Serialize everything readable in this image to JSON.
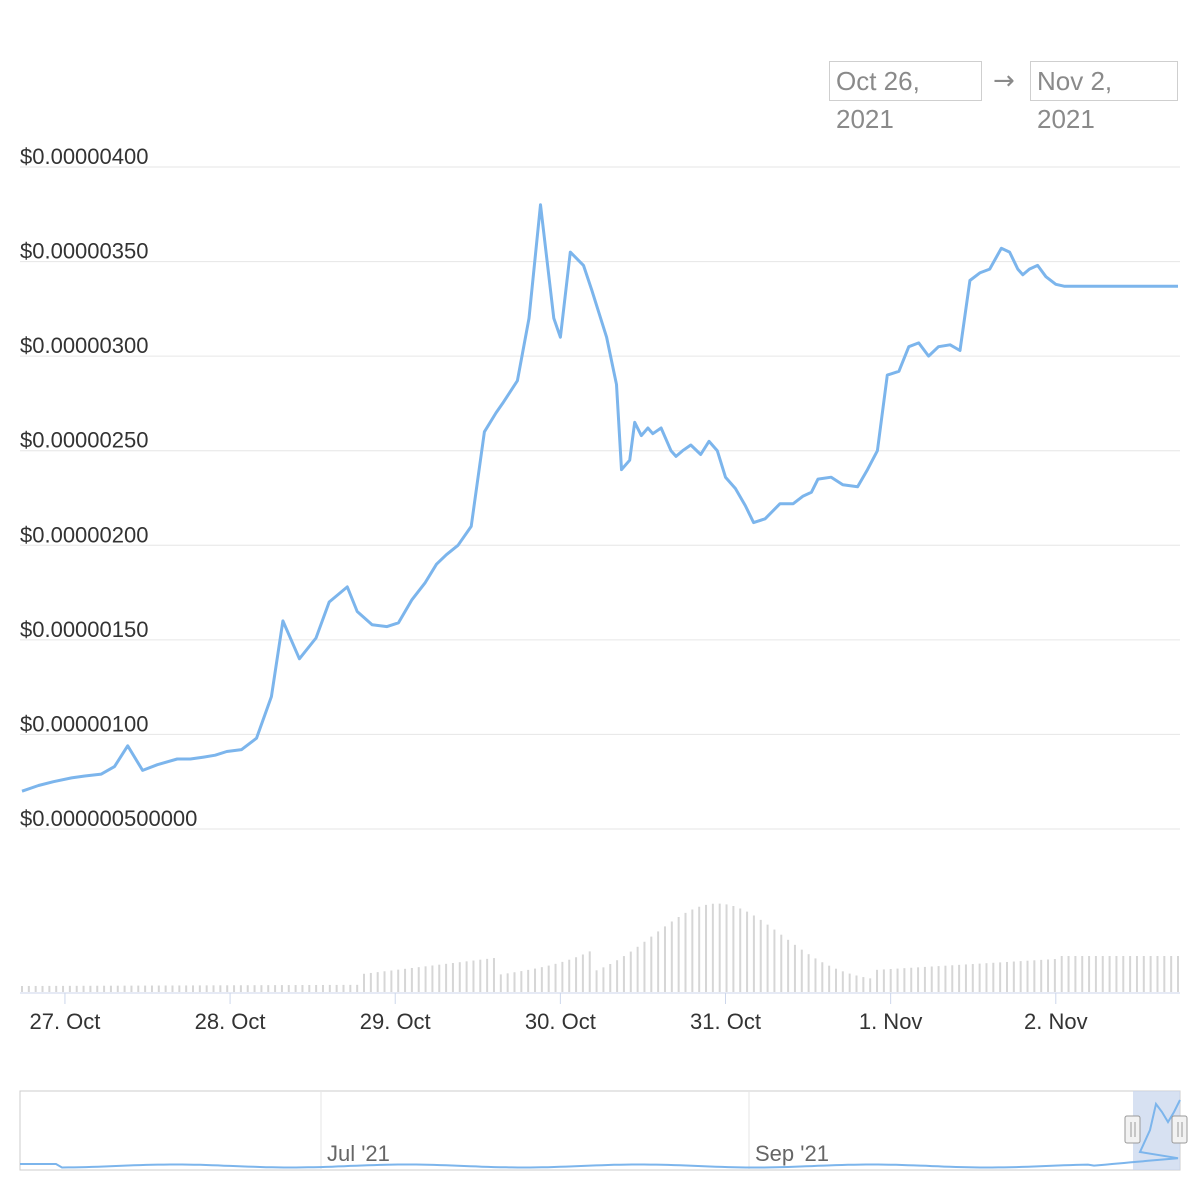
{
  "range_selector": {
    "from": "Oct 26, 2021",
    "arrow": "→",
    "to": "Nov 2, 2021"
  },
  "colors": {
    "line": "#7cb5ec",
    "grid": "#e6e6e6",
    "volume_bar": "#d6d6d6",
    "navigator_mask": "#c9d7ee"
  },
  "chart_data": {
    "type": "line",
    "x_unit": "days since 00:00 on 26 Oct 2021",
    "ylim": [
      5e-07,
      4e-06
    ],
    "y_ticks": [
      {
        "value": 4e-06,
        "label": "$0.00000400"
      },
      {
        "value": 3.5e-06,
        "label": "$0.00000350"
      },
      {
        "value": 3e-06,
        "label": "$0.00000300"
      },
      {
        "value": 2.5e-06,
        "label": "$0.00000250"
      },
      {
        "value": 2e-06,
        "label": "$0.00000200"
      },
      {
        "value": 1.5e-06,
        "label": "$0.00000150"
      },
      {
        "value": 1e-06,
        "label": "$0.00000100"
      },
      {
        "value": 5e-07,
        "label": "$0.000000500000"
      }
    ],
    "x_ticks": [
      {
        "x": 1,
        "label": "27. Oct"
      },
      {
        "x": 2,
        "label": "28. Oct"
      },
      {
        "x": 3,
        "label": "29. Oct"
      },
      {
        "x": 4,
        "label": "30. Oct"
      },
      {
        "x": 5,
        "label": "31. Oct"
      },
      {
        "x": 6,
        "label": "1. Nov"
      },
      {
        "x": 7,
        "label": "2. Nov"
      }
    ],
    "xlim": [
      0.74,
      7.74
    ],
    "series": [
      {
        "x": [
          0.74,
          0.84,
          0.93,
          1.04,
          1.12,
          1.22,
          1.3,
          1.38,
          1.47,
          1.56,
          1.68,
          1.76,
          1.84,
          1.91,
          1.98,
          2.07,
          2.16,
          2.25,
          2.32,
          2.42,
          2.52,
          2.6,
          2.71,
          2.77,
          2.86,
          2.95,
          3.02,
          3.1,
          3.18,
          3.25,
          3.31,
          3.38,
          3.46,
          3.54,
          3.61,
          3.65,
          3.74,
          3.81,
          3.88,
          3.96,
          4.0,
          4.06,
          4.14,
          4.19,
          4.28,
          4.34,
          4.37,
          4.42,
          4.45,
          4.49,
          4.53,
          4.56,
          4.61,
          4.67,
          4.7,
          4.74,
          4.79,
          4.85,
          4.9,
          4.95,
          5.0,
          5.06,
          5.12,
          5.17,
          5.24,
          5.33,
          5.41,
          5.47,
          5.52,
          5.56,
          5.64,
          5.71,
          5.8,
          5.86,
          5.92,
          5.98,
          6.05,
          6.11,
          6.17,
          6.23,
          6.29,
          6.36,
          6.42,
          6.48,
          6.54,
          6.6,
          6.67,
          6.72,
          6.77,
          6.8,
          6.84,
          6.89,
          6.94,
          7.0,
          7.05,
          7.1,
          7.16,
          7.22,
          7.28,
          7.3,
          7.34,
          7.37,
          7.41,
          7.44,
          7.48,
          7.52,
          7.56,
          7.6,
          7.64,
          7.7,
          7.74
        ],
        "y": [
          7e-07,
          7.3e-07,
          7.5e-07,
          7.7e-07,
          7.8e-07,
          7.9e-07,
          8.3e-07,
          9.4e-07,
          8.1e-07,
          8.4e-07,
          8.7e-07,
          8.7e-07,
          8.8e-07,
          8.9e-07,
          9.1e-07,
          9.2e-07,
          9.8e-07,
          1.2e-06,
          1.6e-06,
          1.4e-06,
          1.51e-06,
          1.7e-06,
          1.78e-06,
          1.65e-06,
          1.58e-06,
          1.57e-06,
          1.59e-06,
          1.71e-06,
          1.8e-06,
          1.9e-06,
          1.95e-06,
          2e-06,
          2.1e-06,
          2.6e-06,
          2.7e-06,
          2.75e-06,
          2.87e-06,
          3.2e-06,
          3.8e-06,
          3.2e-06,
          3.1e-06,
          3.55e-06,
          3.48e-06,
          3.35e-06,
          3.1e-06,
          2.85e-06,
          2.4e-06,
          2.45e-06,
          2.65e-06,
          2.58e-06,
          2.62e-06,
          2.59e-06,
          2.62e-06,
          2.5e-06,
          2.47e-06,
          2.5e-06,
          2.53e-06,
          2.48e-06,
          2.55e-06,
          2.5e-06,
          2.36e-06,
          2.3e-06,
          2.21e-06,
          2.12e-06,
          2.14e-06,
          2.22e-06,
          2.22e-06,
          2.26e-06,
          2.28e-06,
          2.35e-06,
          2.36e-06,
          2.32e-06,
          2.31e-06,
          2.4e-06,
          2.5e-06,
          2.9e-06,
          2.92e-06,
          3.05e-06,
          3.07e-06,
          3e-06,
          3.05e-06,
          3.06e-06,
          3.03e-06,
          3.4e-06,
          3.44e-06,
          3.46e-06,
          3.57e-06,
          3.55e-06,
          3.46e-06,
          3.43e-06,
          3.46e-06,
          3.48e-06,
          3.42e-06,
          3.38e-06,
          3.37e-06,
          3.37e-06,
          3.37e-06,
          3.37e-06,
          3.37e-06,
          3.37e-06,
          3.37e-06,
          3.37e-06,
          3.37e-06,
          3.37e-06,
          3.37e-06,
          3.37e-06,
          3.37e-06,
          3.37e-06,
          3.37e-06,
          3.37e-06,
          3.37e-06
        ]
      }
    ],
    "grid": true,
    "legend": "none"
  },
  "navigator": {
    "labels": [
      "Jul '21",
      "Sep '21"
    ],
    "handle_glyph": "||"
  }
}
